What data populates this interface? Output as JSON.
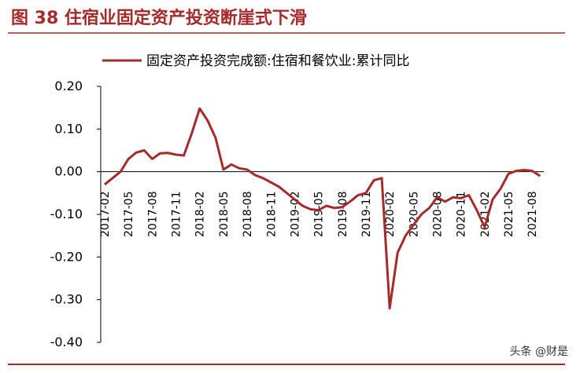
{
  "chart_data": {
    "type": "line",
    "title": "图 38 住宿业固定资产投资断崖式下滑",
    "watermark": "头条 @财是",
    "categories": [
      "2017-02",
      null,
      null,
      "2017-05",
      null,
      null,
      "2017-08",
      null,
      null,
      "2017-11",
      null,
      null,
      "2018-02",
      null,
      null,
      "2018-05",
      null,
      null,
      "2018-08",
      null,
      null,
      "2018-11",
      null,
      null,
      "2019-02",
      null,
      null,
      "2019-05",
      null,
      null,
      "2019-08",
      null,
      null,
      "2019-11",
      null,
      null,
      "2020-02",
      null,
      null,
      "2020-05",
      null,
      null,
      "2020-08",
      null,
      null,
      "2020-11",
      null,
      null,
      "2021-02",
      null,
      null,
      "2021-05",
      null,
      null,
      "2021-08",
      null
    ],
    "series": [
      {
        "name": "固定资产投资完成额:住宿和餐饮业:累计同比",
        "color": "#a52a2a",
        "values": [
          -0.03,
          -0.015,
          0.0,
          0.03,
          0.045,
          0.05,
          0.03,
          0.043,
          0.044,
          0.04,
          0.038,
          0.09,
          0.148,
          0.12,
          0.08,
          0.005,
          0.017,
          0.008,
          0.005,
          -0.008,
          -0.015,
          -0.025,
          -0.035,
          -0.05,
          -0.065,
          -0.08,
          -0.088,
          -0.09,
          -0.08,
          -0.085,
          -0.083,
          -0.07,
          -0.055,
          -0.05,
          -0.02,
          -0.015,
          -0.32,
          -0.19,
          -0.15,
          -0.125,
          -0.1,
          -0.085,
          -0.06,
          -0.07,
          -0.06,
          -0.062,
          -0.055,
          -0.09,
          -0.13,
          -0.065,
          -0.04,
          -0.005,
          0.002,
          0.004,
          0.002,
          -0.01
        ]
      }
    ],
    "ylim": [
      -0.4,
      0.2
    ],
    "yticks": [
      {
        "value": 0.2,
        "label": "0.20"
      },
      {
        "value": 0.1,
        "label": "0.10"
      },
      {
        "value": 0,
        "label": "0.00"
      },
      {
        "value": -0.1,
        "label": "-0.10"
      },
      {
        "value": -0.2,
        "label": "-0.20"
      },
      {
        "value": -0.3,
        "label": "-0.30"
      },
      {
        "value": -0.4,
        "label": "-0.40"
      }
    ],
    "legend": "top"
  }
}
